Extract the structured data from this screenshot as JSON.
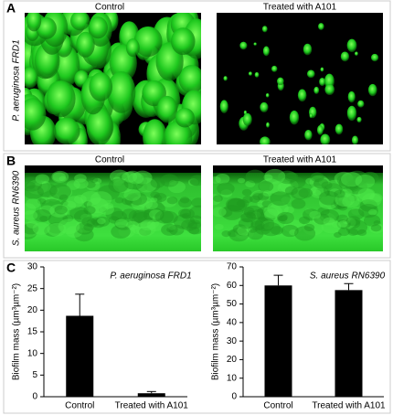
{
  "panels": [
    {
      "label": "A",
      "row_label": "P. aeruginosa FRD1",
      "images": [
        "Control",
        "Treated with A101"
      ]
    },
    {
      "label": "B",
      "row_label": "S. aureus RN6390",
      "images": [
        "Control",
        "Treated with A101"
      ]
    },
    {
      "label": "C"
    }
  ],
  "chart_data": [
    {
      "type": "bar",
      "title": "P. aeruginosa FRD1",
      "y_label": "Biofilm mass (µm³µm⁻²)",
      "categories": [
        "Control",
        "Treated with A101"
      ],
      "values": [
        18.7,
        0.8
      ],
      "errors": [
        5,
        0.4
      ],
      "color": "#000000",
      "ylim": [
        0,
        30
      ],
      "yticks": [
        0,
        5,
        10,
        15,
        20,
        25,
        30
      ]
    },
    {
      "type": "bar",
      "title": "S. aureus RN6390",
      "y_label": "Biofilm mass (µm³µm⁻²)",
      "categories": [
        "Control",
        "Treated with A101"
      ],
      "values": [
        60,
        57.5
      ],
      "errors": [
        5.5,
        3.5
      ],
      "color": "#000000",
      "ylim": [
        0,
        70
      ],
      "yticks": [
        0,
        10,
        20,
        30,
        40,
        50,
        60,
        70
      ]
    }
  ]
}
